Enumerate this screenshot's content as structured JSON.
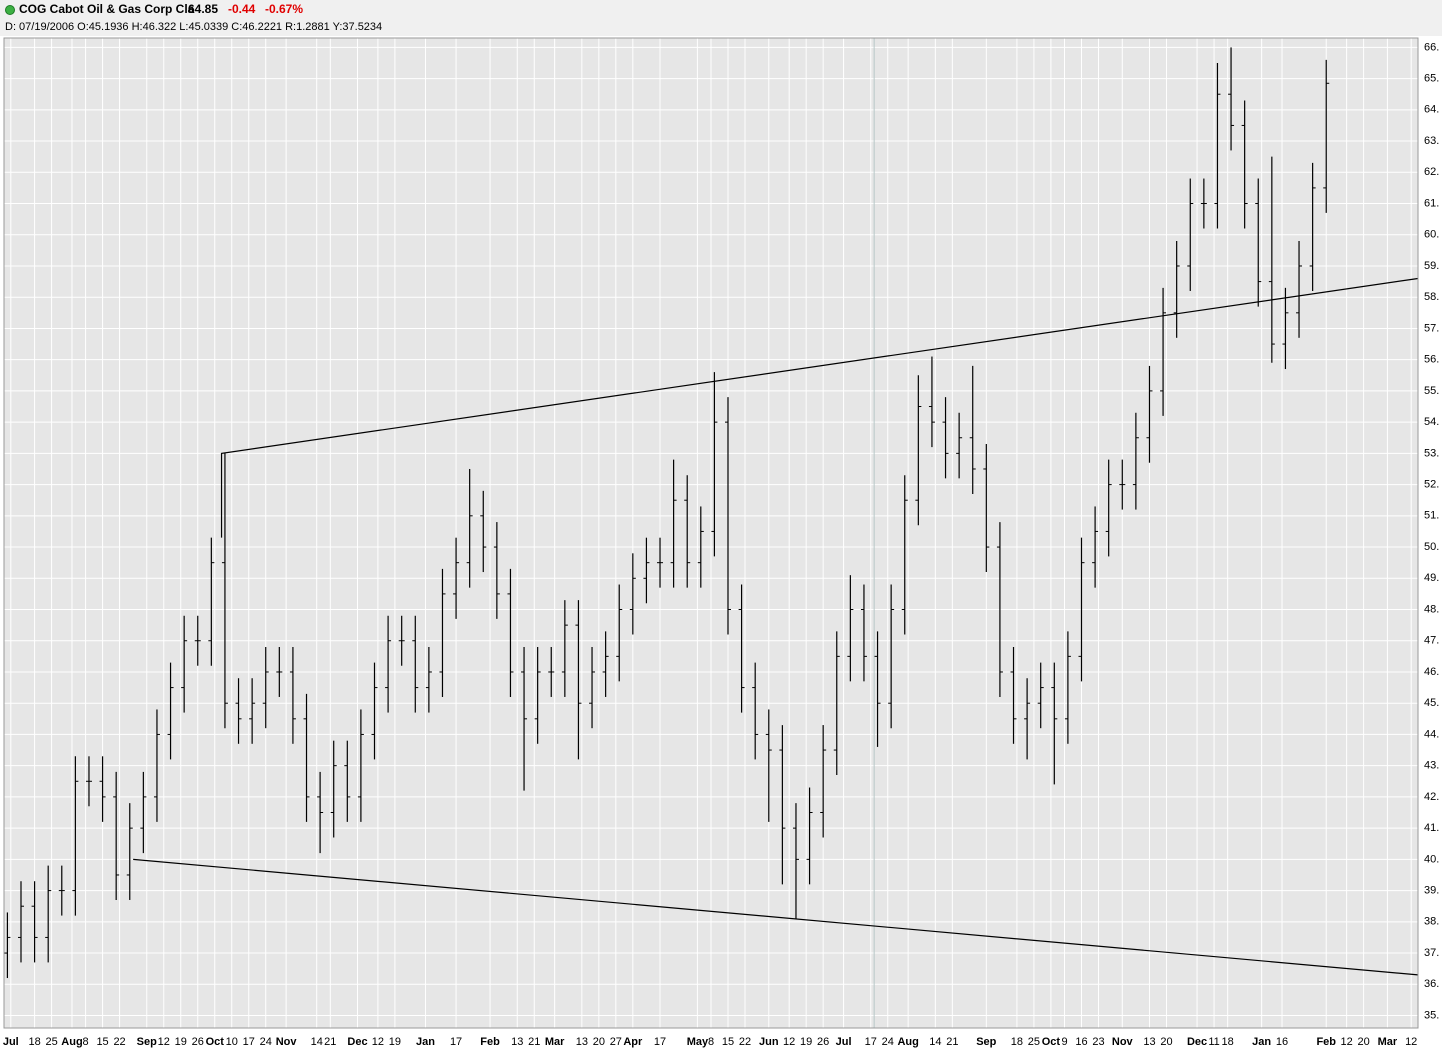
{
  "header": {
    "symbol_line": "COG Cabot Oil & Gas Corp Cla",
    "last": "64.85",
    "change": "-0.44",
    "change_pct": "-0.67%",
    "details": "D: 07/19/2006 O:45.1936 H:46.322 L:45.0339 C:46.2221 R:1.2881 Y:37.5234"
  },
  "chart_data": {
    "type": "ohlc",
    "color": "#000000",
    "grid": true,
    "background": "#e6e6e6",
    "grid_color": "#ffffff",
    "x": [
      1,
      5,
      9,
      13,
      17,
      21,
      25,
      29,
      33,
      37,
      41,
      45,
      49,
      53,
      57,
      61,
      65,
      69,
      73,
      77,
      81,
      85,
      89,
      93,
      97,
      101,
      105,
      109,
      113,
      117,
      121,
      125,
      129,
      133,
      137,
      141,
      145,
      149,
      153,
      157,
      161,
      165,
      169,
      173,
      177,
      181,
      185,
      189,
      193,
      197,
      201,
      205,
      209,
      213,
      217,
      221,
      225,
      229,
      233,
      237,
      241,
      245,
      249,
      253,
      257,
      261,
      265,
      269,
      273,
      277,
      281,
      285,
      289,
      293,
      297,
      301,
      305,
      309,
      313,
      317,
      321,
      325,
      329,
      333,
      337,
      341,
      345,
      349,
      353,
      357,
      361,
      365,
      369,
      373,
      377,
      381,
      385,
      389
    ],
    "open": [
      37,
      37.5,
      38.5,
      37.5,
      39,
      39,
      42.5,
      42.5,
      42,
      39.5,
      41,
      42,
      44,
      45.5,
      47,
      47,
      49.5,
      45,
      44.5,
      45,
      46,
      46,
      44.5,
      42,
      41.5,
      43,
      42,
      44,
      45.5,
      47,
      47,
      45.5,
      46,
      48.5,
      49.5,
      51,
      50,
      48.5,
      46,
      44.5,
      46,
      46,
      47.5,
      45,
      46,
      46.5,
      48,
      49,
      49.5,
      49.5,
      51.5,
      49.5,
      50.5,
      54,
      48,
      45.5,
      44,
      43.5,
      41,
      40,
      41.5,
      43.5,
      46.5,
      48,
      46.5,
      45,
      48,
      51.5,
      54.5,
      54,
      53,
      53.5,
      52.5,
      50,
      46,
      44.5,
      45,
      45.5,
      44.5,
      46.5,
      49.5,
      50.5,
      52,
      52,
      53.5,
      55,
      57.5,
      59,
      61,
      61,
      64.5,
      63.5,
      61,
      58.5,
      56.5,
      57.5,
      59,
      61.5
    ],
    "high": [
      38.3,
      39.3,
      39.3,
      39.8,
      39.8,
      43.3,
      43.3,
      43.3,
      42.8,
      41.8,
      42.8,
      44.8,
      46.3,
      47.8,
      47.8,
      50.3,
      53,
      45.8,
      45.8,
      46.8,
      46.8,
      46.8,
      45.3,
      42.8,
      43.8,
      43.8,
      44.8,
      46.3,
      47.8,
      47.8,
      47.8,
      46.8,
      49.3,
      50.3,
      52.5,
      51.8,
      50.8,
      49.3,
      46.8,
      46.8,
      46.8,
      48.3,
      48.3,
      46.8,
      47.3,
      48.8,
      49.8,
      50.3,
      50.3,
      52.8,
      52.3,
      51.3,
      55.6,
      54.8,
      48.8,
      46.3,
      44.8,
      44.3,
      41.8,
      42.3,
      44.3,
      47.3,
      49.1,
      48.8,
      47.3,
      48.8,
      52.3,
      55.5,
      56.1,
      54.8,
      54.3,
      55.8,
      53.3,
      50.8,
      46.8,
      45.8,
      46.3,
      46.3,
      47.3,
      50.3,
      51.3,
      52.8,
      52.8,
      54.3,
      55.8,
      58.3,
      59.8,
      61.8,
      61.8,
      65.5,
      66,
      64.3,
      61.8,
      62.5,
      58.3,
      59.8,
      62.3,
      65.6
    ],
    "low": [
      36.2,
      36.7,
      36.7,
      36.7,
      38.2,
      38.2,
      41.7,
      41.2,
      38.7,
      38.7,
      40.2,
      41.2,
      43.2,
      44.7,
      46.2,
      46.2,
      44.2,
      43.7,
      43.7,
      44.2,
      45.2,
      43.7,
      41.2,
      40.2,
      40.7,
      41.2,
      41.2,
      43.2,
      44.7,
      46.2,
      44.7,
      44.7,
      45.2,
      47.7,
      48.7,
      49.2,
      47.7,
      45.2,
      42.2,
      43.7,
      45.2,
      45.2,
      43.2,
      44.2,
      45.2,
      45.7,
      47.2,
      48.2,
      48.7,
      48.7,
      48.7,
      48.7,
      49.7,
      47.2,
      44.7,
      43.2,
      41.2,
      39.2,
      38.1,
      39.2,
      40.7,
      42.7,
      45.7,
      45.7,
      43.6,
      44.2,
      47.2,
      50.7,
      53.2,
      52.2,
      52.2,
      51.7,
      49.2,
      45.2,
      43.7,
      43.2,
      44.2,
      42.4,
      43.7,
      45.7,
      48.7,
      49.7,
      51.2,
      51.2,
      52.7,
      54.2,
      56.7,
      58.2,
      60.2,
      60.2,
      62.7,
      60.2,
      57.7,
      55.9,
      55.7,
      56.7,
      58.2,
      60.7
    ],
    "close": [
      37.5,
      38.5,
      37.5,
      39,
      39,
      42.5,
      42.5,
      42,
      39.5,
      41,
      42,
      44,
      45.5,
      47,
      47,
      49.5,
      45,
      44.5,
      45,
      46,
      46,
      44.5,
      42,
      41.5,
      43,
      42,
      44,
      45.5,
      47,
      47,
      45.5,
      46,
      48.5,
      49.5,
      51,
      50,
      48.5,
      46,
      44.5,
      46,
      46,
      47.5,
      45,
      46,
      46.5,
      48,
      49,
      49.5,
      49.5,
      51.5,
      49.5,
      50.5,
      54,
      48,
      45.5,
      44,
      43.5,
      41,
      40,
      41.5,
      43.5,
      46.5,
      48,
      46.5,
      45,
      48,
      51.5,
      54.5,
      54,
      53,
      53.5,
      52.5,
      50,
      46,
      44.5,
      45,
      45.5,
      44.5,
      46.5,
      49.5,
      50.5,
      52,
      52,
      53.5,
      55,
      57.5,
      59,
      61,
      61,
      64.5,
      63.5,
      61,
      58.5,
      56.5,
      57.5,
      59,
      61.5,
      64.85
    ],
    "trendlines": [
      {
        "x": [
          64,
          64,
          416
        ],
        "values": [
          50.3,
          53,
          58.6
        ]
      },
      {
        "x": [
          38,
          416
        ],
        "values": [
          40,
          36.3
        ]
      }
    ],
    "cursor_x": 256,
    "xlim": [
      0,
      416
    ],
    "ylim": [
      34.6,
      66.3
    ],
    "xticks": [
      {
        "value": 2,
        "label": "Jul"
      },
      {
        "value": 9,
        "label": "18"
      },
      {
        "value": 14,
        "label": "25"
      },
      {
        "value": 20,
        "label": "Aug"
      },
      {
        "value": 24,
        "label": "8"
      },
      {
        "value": 29,
        "label": "15"
      },
      {
        "value": 34,
        "label": "22"
      },
      {
        "value": 42,
        "label": "Sep"
      },
      {
        "value": 47,
        "label": "12"
      },
      {
        "value": 52,
        "label": "19"
      },
      {
        "value": 57,
        "label": "26"
      },
      {
        "value": 62,
        "label": "Oct"
      },
      {
        "value": 67,
        "label": "10"
      },
      {
        "value": 72,
        "label": "17"
      },
      {
        "value": 77,
        "label": "24"
      },
      {
        "value": 83,
        "label": "Nov"
      },
      {
        "value": 92,
        "label": "14"
      },
      {
        "value": 96,
        "label": "21"
      },
      {
        "value": 104,
        "label": "Dec"
      },
      {
        "value": 110,
        "label": "12"
      },
      {
        "value": 115,
        "label": "19"
      },
      {
        "value": 124,
        "label": "Jan"
      },
      {
        "value": 133,
        "label": "17"
      },
      {
        "value": 143,
        "label": "Feb"
      },
      {
        "value": 151,
        "label": "13"
      },
      {
        "value": 156,
        "label": "21"
      },
      {
        "value": 162,
        "label": "Mar"
      },
      {
        "value": 170,
        "label": "13"
      },
      {
        "value": 175,
        "label": "20"
      },
      {
        "value": 180,
        "label": "27"
      },
      {
        "value": 185,
        "label": "Apr"
      },
      {
        "value": 193,
        "label": "17"
      },
      {
        "value": 204,
        "label": "May"
      },
      {
        "value": 208,
        "label": "8"
      },
      {
        "value": 213,
        "label": "15"
      },
      {
        "value": 218,
        "label": "22"
      },
      {
        "value": 225,
        "label": "Jun"
      },
      {
        "value": 231,
        "label": "12"
      },
      {
        "value": 236,
        "label": "19"
      },
      {
        "value": 241,
        "label": "26"
      },
      {
        "value": 247,
        "label": "Jul"
      },
      {
        "value": 255,
        "label": "17"
      },
      {
        "value": 260,
        "label": "24"
      },
      {
        "value": 266,
        "label": "Aug"
      },
      {
        "value": 274,
        "label": "14"
      },
      {
        "value": 279,
        "label": "21"
      },
      {
        "value": 289,
        "label": "Sep"
      },
      {
        "value": 298,
        "label": "18"
      },
      {
        "value": 303,
        "label": "25"
      },
      {
        "value": 308,
        "label": "Oct"
      },
      {
        "value": 312,
        "label": "9"
      },
      {
        "value": 317,
        "label": "16"
      },
      {
        "value": 322,
        "label": "23"
      },
      {
        "value": 329,
        "label": "Nov"
      },
      {
        "value": 337,
        "label": "13"
      },
      {
        "value": 342,
        "label": "20"
      },
      {
        "value": 351,
        "label": "Dec"
      },
      {
        "value": 356,
        "label": "11"
      },
      {
        "value": 360,
        "label": "18"
      },
      {
        "value": 370,
        "label": "Jan"
      },
      {
        "value": 376,
        "label": "16"
      },
      {
        "value": 389,
        "label": "Feb"
      },
      {
        "value": 395,
        "label": "12"
      },
      {
        "value": 400,
        "label": "20"
      },
      {
        "value": 407,
        "label": "Mar"
      },
      {
        "value": 414,
        "label": "12"
      }
    ],
    "yticks": [
      {
        "value": 66,
        "label": "66."
      },
      {
        "value": 65,
        "label": "65."
      },
      {
        "value": 64,
        "label": "64."
      },
      {
        "value": 63,
        "label": "63."
      },
      {
        "value": 62,
        "label": "62."
      },
      {
        "value": 61,
        "label": "61."
      },
      {
        "value": 60,
        "label": "60."
      },
      {
        "value": 59,
        "label": "59."
      },
      {
        "value": 58,
        "label": "58."
      },
      {
        "value": 57,
        "label": "57."
      },
      {
        "value": 56,
        "label": "56."
      },
      {
        "value": 55,
        "label": "55."
      },
      {
        "value": 54,
        "label": "54."
      },
      {
        "value": 53,
        "label": "53."
      },
      {
        "value": 52,
        "label": "52."
      },
      {
        "value": 51,
        "label": "51."
      },
      {
        "value": 50,
        "label": "50."
      },
      {
        "value": 49,
        "label": "49."
      },
      {
        "value": 48,
        "label": "48."
      },
      {
        "value": 47,
        "label": "47."
      },
      {
        "value": 46,
        "label": "46."
      },
      {
        "value": 45,
        "label": "45."
      },
      {
        "value": 44,
        "label": "44."
      },
      {
        "value": 43,
        "label": "43."
      },
      {
        "value": 42,
        "label": "42."
      },
      {
        "value": 41,
        "label": "41."
      },
      {
        "value": 40,
        "label": "40."
      },
      {
        "value": 39,
        "label": "39."
      },
      {
        "value": 38,
        "label": "38."
      },
      {
        "value": 37,
        "label": "37."
      },
      {
        "value": 36,
        "label": "36."
      },
      {
        "value": 35,
        "label": "35."
      }
    ]
  }
}
